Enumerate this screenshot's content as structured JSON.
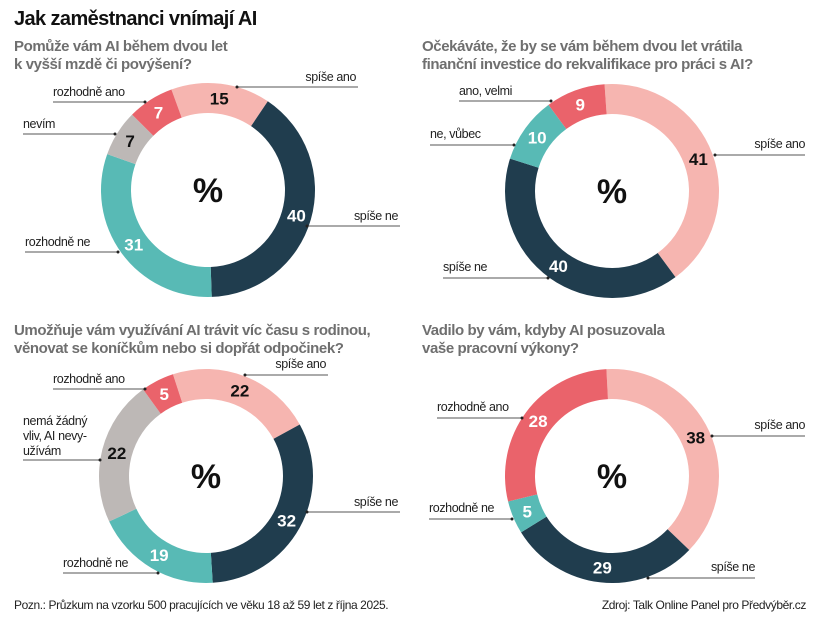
{
  "title": "Jak zaměstnanci vnímají AI",
  "footer": {
    "note": "Pozn.: Průzkum na vzorku 500 pracujících ve věku 18 až 59 let z října 2025.",
    "source": "Zdroj: Talk Online Panel pro Předvýběr.cz"
  },
  "colors": {
    "spise_ano": "#f6b5b0",
    "rozhodne_ano": "#ea636b",
    "nevim": "#bdb8b6",
    "rozhodne_ne": "#58bab5",
    "spise_ne": "#203d4e"
  },
  "chart_data": [
    {
      "type": "pie",
      "variant": "donut",
      "title": "Pomůže vám AI během dvou let k vyšší mzdě či povýšení?",
      "title_lines": [
        "Pomůže vám AI během dvou let",
        "k vyšší mzdě či povýšení?"
      ],
      "center_label": "%",
      "unit": "%",
      "slices": [
        {
          "label": "spíše ano",
          "value": 15,
          "color": "#f6b5b0",
          "text_color": "#111111"
        },
        {
          "label": "spíše ne",
          "value": 40,
          "color": "#203d4e",
          "text_color": "#ffffff"
        },
        {
          "label": "rozhodně ne",
          "value": 31,
          "color": "#58bab5",
          "text_color": "#ffffff"
        },
        {
          "label": "nevím",
          "value": 7,
          "color": "#bdb8b6",
          "text_color": "#111111"
        },
        {
          "label": "rozhodně ano",
          "value": 7,
          "color": "#ea636b",
          "text_color": "#ffffff"
        }
      ]
    },
    {
      "type": "pie",
      "variant": "donut",
      "title": "Očekáváte, že by se vám během dvou let vrátila finanční investice do rekvalifikace pro práci s AI?",
      "title_lines": [
        "Očekáváte, že by se vám během dvou let vrátila",
        "finanční investice do rekvalifikace pro práci s AI?"
      ],
      "center_label": "%",
      "unit": "%",
      "slices": [
        {
          "label": "spíše ano",
          "value": 41,
          "color": "#f6b5b0",
          "text_color": "#111111"
        },
        {
          "label": "spíše ne",
          "value": 40,
          "color": "#203d4e",
          "text_color": "#ffffff"
        },
        {
          "label": "ne, vůbec",
          "value": 10,
          "color": "#58bab5",
          "text_color": "#ffffff"
        },
        {
          "label": "ano, velmi",
          "value": 9,
          "color": "#ea636b",
          "text_color": "#ffffff"
        }
      ]
    },
    {
      "type": "pie",
      "variant": "donut",
      "title": "Umožňuje vám využívání AI trávit víc času s rodinou, věnovat se koníčkům nebo si dopřát odpočinek?",
      "title_lines": [
        "Umožňuje vám využívání AI trávit víc času s rodinou,",
        "věnovat se koníčkům nebo si dopřát odpočinek?"
      ],
      "center_label": "%",
      "unit": "%",
      "slices": [
        {
          "label": "spíše ano",
          "value": 22,
          "color": "#f6b5b0",
          "text_color": "#111111"
        },
        {
          "label": "spíše ne",
          "value": 32,
          "color": "#203d4e",
          "text_color": "#ffffff"
        },
        {
          "label": "rozhodně ne",
          "value": 19,
          "color": "#58bab5",
          "text_color": "#ffffff"
        },
        {
          "label": "nemá žádný vliv, AI nevyužívám",
          "label_lines": [
            "nemá žádný",
            "vliv, AI nevy-",
            "užívám"
          ],
          "value": 22,
          "color": "#bdb8b6",
          "text_color": "#111111"
        },
        {
          "label": "rozhodně ano",
          "value": 5,
          "color": "#ea636b",
          "text_color": "#ffffff"
        }
      ]
    },
    {
      "type": "pie",
      "variant": "donut",
      "title": "Vadilo by vám, kdyby AI posuzovala vaše pracovní výkony?",
      "title_lines": [
        "Vadilo by vám, kdyby AI posuzovala",
        "vaše pracovní výkony?"
      ],
      "center_label": "%",
      "unit": "%",
      "slices": [
        {
          "label": "spíše ano",
          "value": 38,
          "color": "#f6b5b0",
          "text_color": "#111111"
        },
        {
          "label": "spíše ne",
          "value": 29,
          "color": "#203d4e",
          "text_color": "#ffffff"
        },
        {
          "label": "rozhodně ne",
          "value": 5,
          "color": "#58bab5",
          "text_color": "#ffffff"
        },
        {
          "label": "rozhodně ano",
          "value": 28,
          "color": "#ea636b",
          "text_color": "#ffffff"
        }
      ]
    }
  ]
}
